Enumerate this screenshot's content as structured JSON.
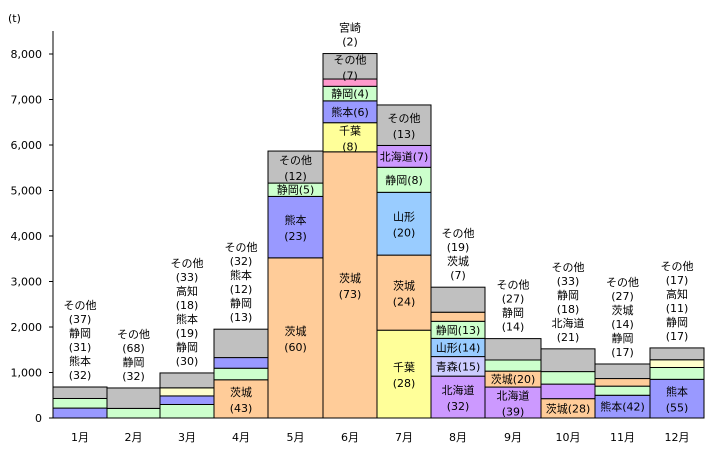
{
  "chart_data": {
    "type": "bar",
    "stacked": true,
    "ylabel": "(t)",
    "ylim": [
      0,
      8000
    ],
    "yticks": [
      "0",
      "1,000",
      "2,000",
      "3,000",
      "4,000",
      "5,000",
      "6,000",
      "7,000",
      "8,000"
    ],
    "ytick_values": [
      0,
      1000,
      2000,
      3000,
      4000,
      5000,
      6000,
      7000,
      8000
    ],
    "grid": false,
    "colors": {
      "熊本": "#9999ff",
      "静岡": "#ccffcc",
      "その他": "#c0c0c0",
      "高知": "#ffffcc",
      "茨城": "#ffcc99",
      "千葉": "#ffff99",
      "宮崎": "#ff99cc",
      "山形": "#99ccff",
      "北海道": "#cc99ff",
      "青森": "#ccccff"
    },
    "categories": [
      "1月",
      "2月",
      "3月",
      "4月",
      "5月",
      "6月",
      "7月",
      "8月",
      "9月",
      "10月",
      "11月",
      "12月"
    ],
    "months": [
      {
        "segments": [
          {
            "name": "熊本",
            "value": 218,
            "pct": "32"
          },
          {
            "name": "静岡",
            "value": 211,
            "pct": "31"
          },
          {
            "name": "その他",
            "value": 252,
            "pct": "37"
          }
        ],
        "above": [
          "その他",
          "静岡",
          "熊本"
        ]
      },
      {
        "segments": [
          {
            "name": "静岡",
            "value": 211,
            "pct": "32"
          },
          {
            "name": "その他",
            "value": 449,
            "pct": "68"
          }
        ],
        "above": [
          "その他",
          "静岡"
        ]
      },
      {
        "segments": [
          {
            "name": "静岡",
            "value": 297,
            "pct": "30"
          },
          {
            "name": "熊本",
            "value": 188,
            "pct": "19"
          },
          {
            "name": "高知",
            "value": 178,
            "pct": "18"
          },
          {
            "name": "その他",
            "value": 327,
            "pct": "33"
          }
        ],
        "above": [
          "その他",
          "高知",
          "熊本",
          "静岡"
        ]
      },
      {
        "segments": [
          {
            "name": "茨城",
            "value": 840,
            "pct": "43",
            "label": "stack"
          },
          {
            "name": "静岡",
            "value": 254,
            "pct": "13"
          },
          {
            "name": "熊本",
            "value": 234,
            "pct": "12"
          },
          {
            "name": "その他",
            "value": 624,
            "pct": "32"
          }
        ],
        "above": [
          "その他",
          "熊本",
          "静岡"
        ]
      },
      {
        "segments": [
          {
            "name": "茨城",
            "value": 3520,
            "pct": "60",
            "label": "stack"
          },
          {
            "name": "熊本",
            "value": 1350,
            "pct": "23",
            "label": "stack"
          },
          {
            "name": "静岡",
            "value": 293,
            "pct": "5",
            "label": "inline"
          },
          {
            "name": "その他",
            "value": 704,
            "pct": "12",
            "label": "stack"
          }
        ],
        "above": []
      },
      {
        "segments": [
          {
            "name": "茨城",
            "value": 5850,
            "pct": "73",
            "label": "stack"
          },
          {
            "name": "千葉",
            "value": 640,
            "pct": "8",
            "label": "stack"
          },
          {
            "name": "熊本",
            "value": 480,
            "pct": "6",
            "label": "inline"
          },
          {
            "name": "静岡",
            "value": 320,
            "pct": "4",
            "label": "inline"
          },
          {
            "name": "宮崎",
            "value": 160,
            "pct": "2"
          },
          {
            "name": "その他",
            "value": 560,
            "pct": "7",
            "label": "stack"
          }
        ],
        "above": [
          "宮崎"
        ]
      },
      {
        "segments": [
          {
            "name": "千葉",
            "value": 1930,
            "pct": "28",
            "label": "stack"
          },
          {
            "name": "茨城",
            "value": 1650,
            "pct": "24",
            "label": "stack"
          },
          {
            "name": "山形",
            "value": 1380,
            "pct": "20",
            "label": "stack"
          },
          {
            "name": "静岡",
            "value": 550,
            "pct": "8",
            "label": "inline"
          },
          {
            "name": "北海道",
            "value": 480,
            "pct": "7",
            "label": "inline"
          },
          {
            "name": "その他",
            "value": 890,
            "pct": "13",
            "label": "stack"
          }
        ],
        "above": []
      },
      {
        "segments": [
          {
            "name": "北海道",
            "value": 920,
            "pct": "32",
            "label": "stack"
          },
          {
            "name": "青森",
            "value": 430,
            "pct": "15",
            "label": "inline"
          },
          {
            "name": "山形",
            "value": 400,
            "pct": "14",
            "label": "inline"
          },
          {
            "name": "静岡",
            "value": 375,
            "pct": "13",
            "label": "inline"
          },
          {
            "name": "茨城",
            "value": 200,
            "pct": "7"
          },
          {
            "name": "その他",
            "value": 550,
            "pct": "19"
          }
        ],
        "above": [
          "その他",
          "茨城"
        ]
      },
      {
        "segments": [
          {
            "name": "北海道",
            "value": 680,
            "pct": "39",
            "label": "stack"
          },
          {
            "name": "茨城",
            "value": 350,
            "pct": "20",
            "label": "inline"
          },
          {
            "name": "静岡",
            "value": 245,
            "pct": "14"
          },
          {
            "name": "その他",
            "value": 470,
            "pct": "27"
          }
        ],
        "above": [
          "その他",
          "静岡"
        ]
      },
      {
        "segments": [
          {
            "name": "茨城",
            "value": 425,
            "pct": "28",
            "label": "inline"
          },
          {
            "name": "北海道",
            "value": 320,
            "pct": "21"
          },
          {
            "name": "静岡",
            "value": 275,
            "pct": "18"
          },
          {
            "name": "その他",
            "value": 500,
            "pct": "33"
          }
        ],
        "above": [
          "その他",
          "静岡",
          "北海道"
        ]
      },
      {
        "segments": [
          {
            "name": "熊本",
            "value": 500,
            "pct": "42",
            "label": "inline"
          },
          {
            "name": "静岡",
            "value": 200,
            "pct": "17"
          },
          {
            "name": "茨城",
            "value": 167,
            "pct": "14"
          },
          {
            "name": "その他",
            "value": 320,
            "pct": "27"
          }
        ],
        "above": [
          "その他",
          "茨城",
          "静岡"
        ]
      },
      {
        "segments": [
          {
            "name": "熊本",
            "value": 850,
            "pct": "55",
            "label": "stack"
          },
          {
            "name": "静岡",
            "value": 260,
            "pct": "17"
          },
          {
            "name": "高知",
            "value": 170,
            "pct": "11"
          },
          {
            "name": "その他",
            "value": 260,
            "pct": "17"
          }
        ],
        "above": [
          "その他",
          "高知",
          "静岡"
        ]
      }
    ]
  }
}
